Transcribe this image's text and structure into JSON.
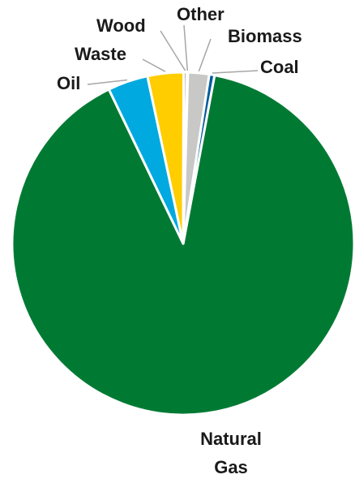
{
  "chart_data": {
    "type": "pie",
    "title": "",
    "categories": [
      "Natural Gas",
      "Oil",
      "Waste",
      "Wood",
      "Other",
      "Biomass",
      "Coal"
    ],
    "values": [
      89.9,
      3.8,
      3.4,
      0.3,
      0.1,
      2.0,
      0.5
    ],
    "units": "%",
    "colors": [
      "#007A33",
      "#00A9E0",
      "#FFCD00",
      "#A6A6A6",
      "#8C8C8C",
      "#C8C9C7",
      "#005A9C"
    ],
    "labels": [
      {
        "lines": [
          "Natural",
          "Gas"
        ]
      },
      {
        "lines": [
          "Oil"
        ]
      },
      {
        "lines": [
          "Waste"
        ]
      },
      {
        "lines": [
          "Wood"
        ]
      },
      {
        "lines": [
          "Other"
        ]
      },
      {
        "lines": [
          "Biomass"
        ]
      },
      {
        "lines": [
          "Coal"
        ]
      }
    ],
    "leader_line_color": "#A6A6A6",
    "legend": "none"
  }
}
